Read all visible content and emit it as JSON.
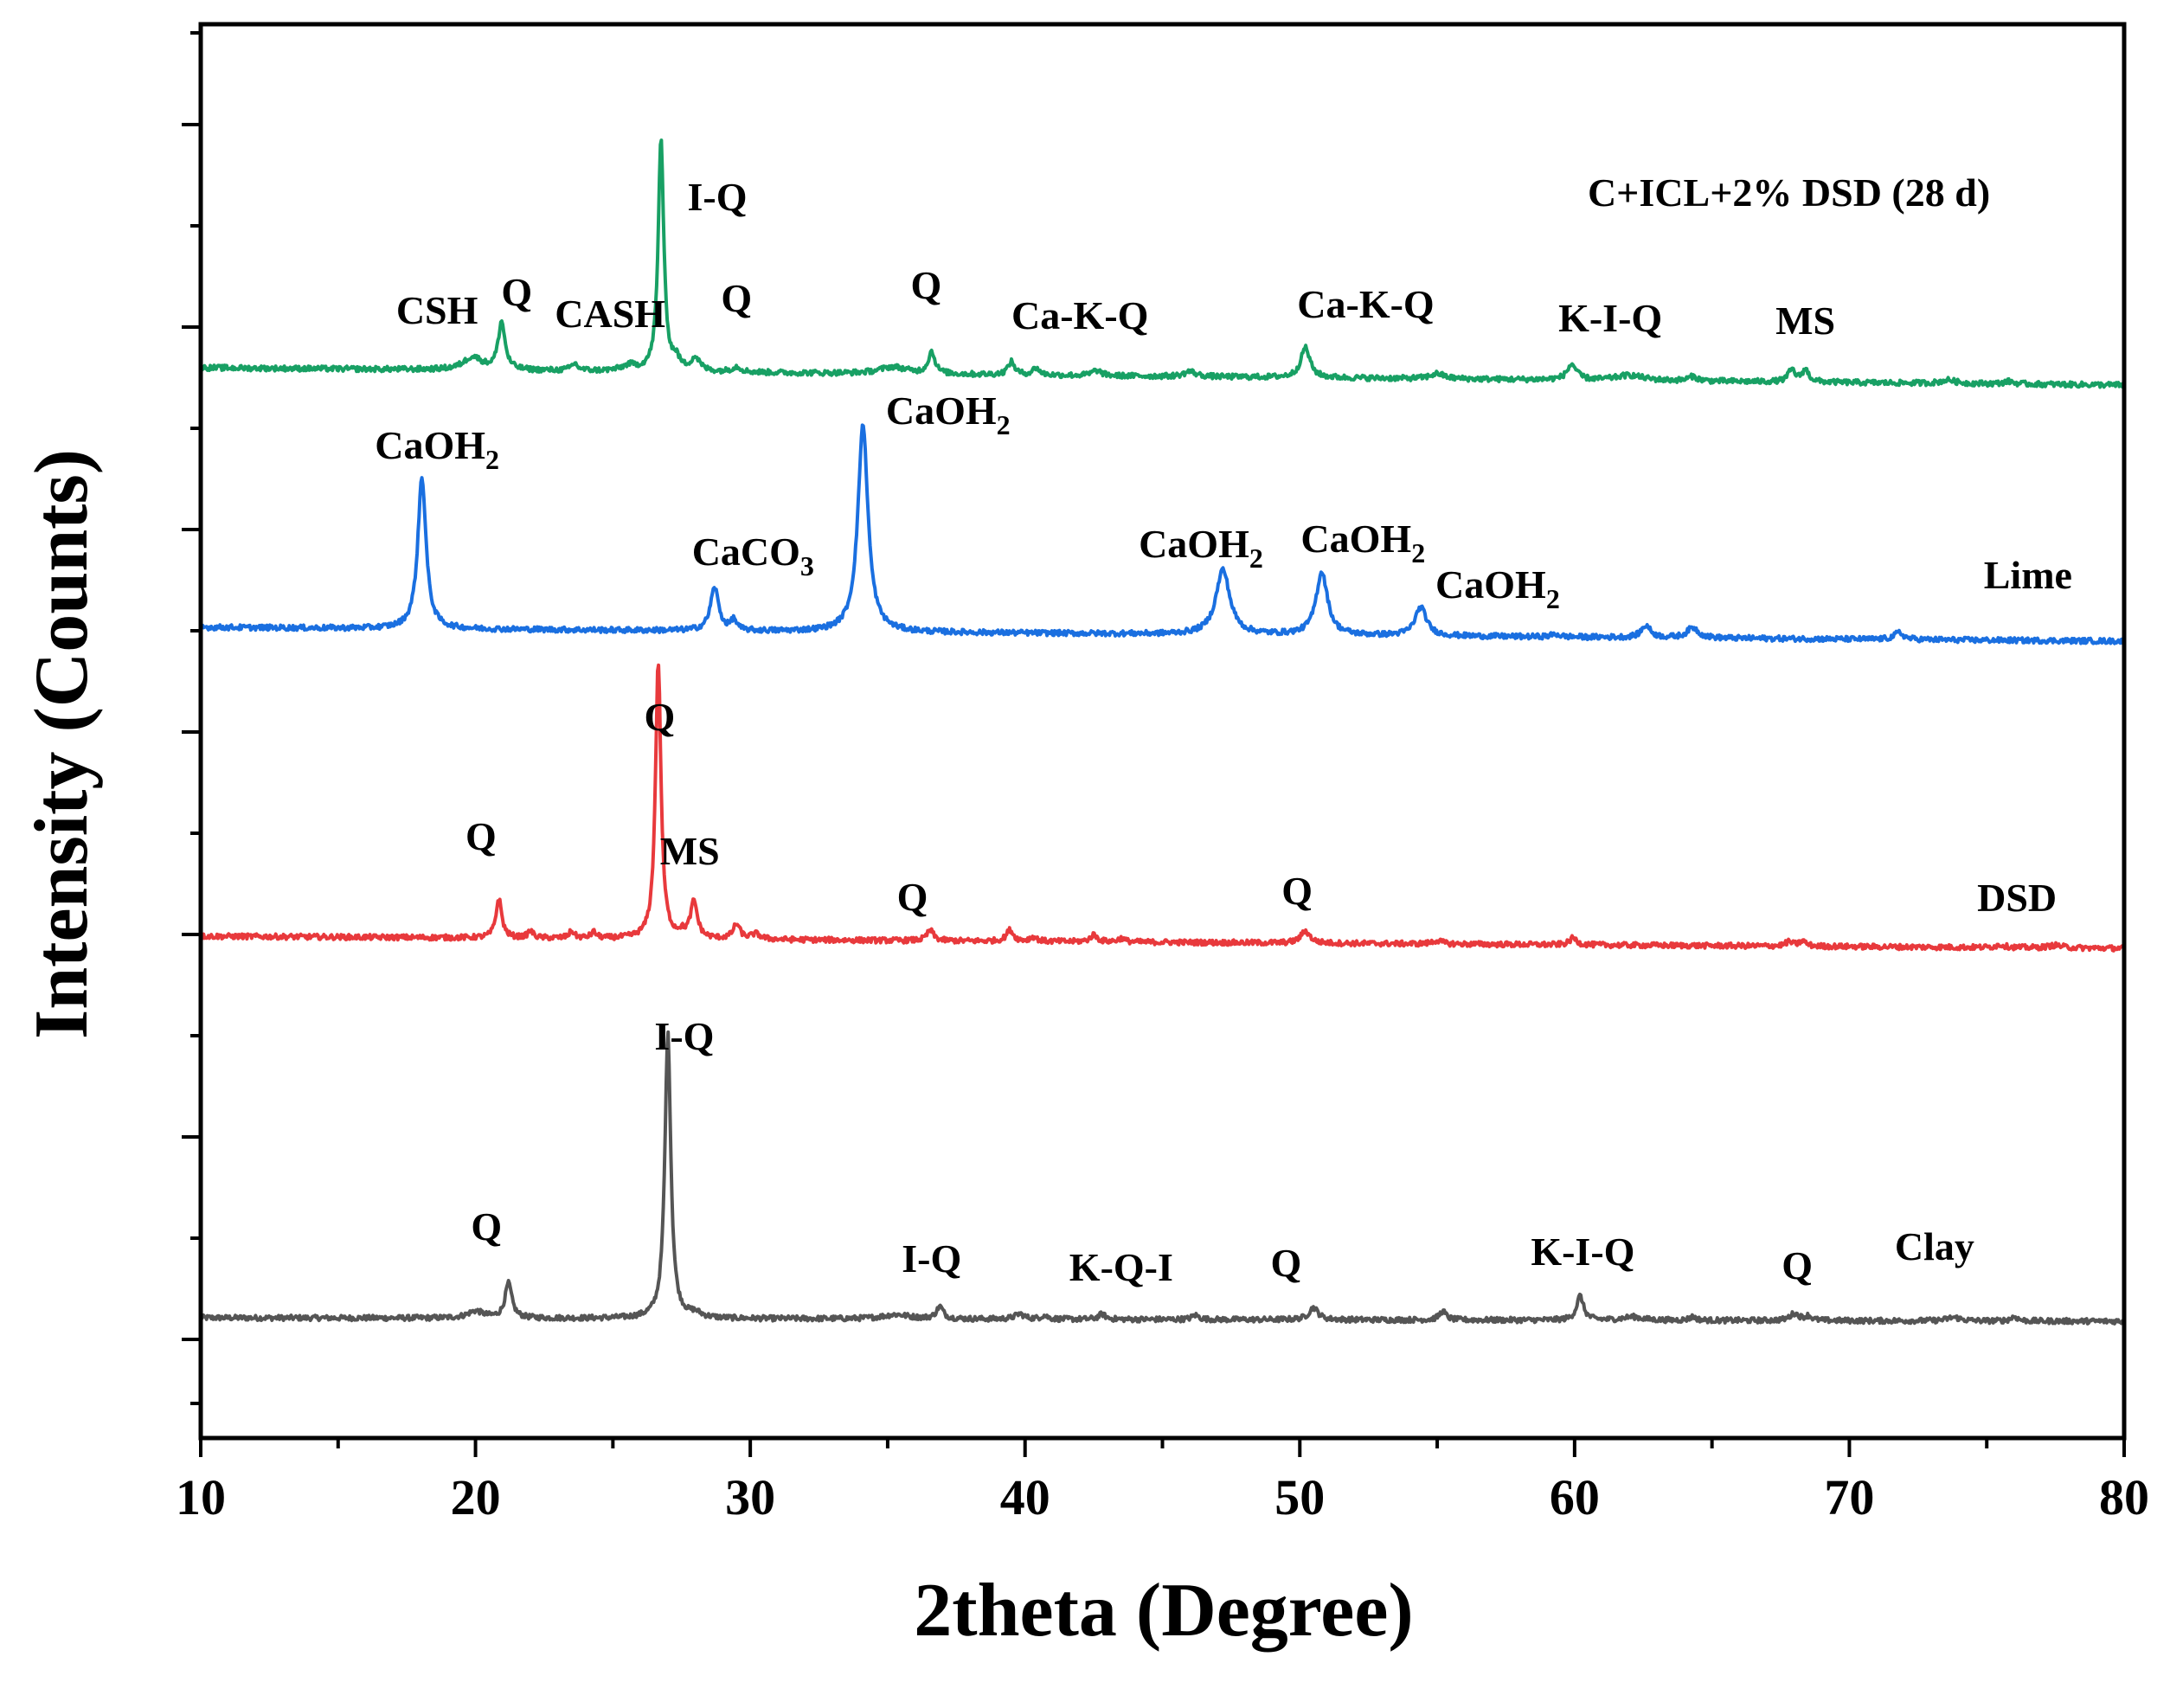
{
  "chart_data": {
    "type": "line",
    "title": "",
    "xlabel": "2theta (Degree)",
    "ylabel": "Intensity (Counts)",
    "xlim": [
      10,
      80
    ],
    "xticks": [
      10,
      20,
      30,
      40,
      50,
      60,
      70,
      80
    ],
    "yticks_labeled": false,
    "series": [
      {
        "name": "Clay",
        "color": "#555555",
        "baseline": 56,
        "slope": -2,
        "peaks": [
          [
            20.0,
            8,
            0.35
          ],
          [
            21.2,
            40,
            0.15
          ],
          [
            27.0,
            330,
            0.13
          ],
          [
            28.0,
            5,
            0.25
          ],
          [
            35.3,
            5,
            0.6
          ],
          [
            36.9,
            14,
            0.15
          ],
          [
            39.8,
            6,
            0.2
          ],
          [
            40.7,
            4,
            0.15
          ],
          [
            42.8,
            6,
            0.15
          ],
          [
            46.2,
            5,
            0.15
          ],
          [
            50.5,
            14,
            0.2
          ],
          [
            55.2,
            10,
            0.15
          ],
          [
            60.2,
            28,
            0.15
          ],
          [
            62.1,
            4,
            0.4
          ],
          [
            64.3,
            4,
            0.15
          ],
          [
            68.0,
            8,
            0.2
          ],
          [
            68.5,
            5,
            0.15
          ],
          [
            73.8,
            4,
            0.3
          ],
          [
            76.0,
            5,
            0.15
          ]
        ],
        "peak_labels": [
          {
            "text": "Q",
            "x": 20.4
          },
          {
            "text": "I-Q",
            "x": 27.6
          },
          {
            "text": "I-Q",
            "x": 36.6
          },
          {
            "text": "K-Q-I",
            "x": 43.5
          },
          {
            "text": "Q",
            "x": 49.5
          },
          {
            "text": "K-I-Q",
            "x": 60.3
          },
          {
            "text": "Q",
            "x": 68.1
          },
          {
            "text": "Clay",
            "x": 73.1
          }
        ]
      },
      {
        "name": "DSD",
        "color": "#e8393c",
        "baseline": 61,
        "slope": -7,
        "peaks": [
          [
            20.85,
            45,
            0.13
          ],
          [
            22.0,
            8,
            0.12
          ],
          [
            23.5,
            8,
            0.12
          ],
          [
            24.3,
            7,
            0.12
          ],
          [
            26.65,
            320,
            0.12
          ],
          [
            27.5,
            5,
            0.15
          ],
          [
            27.95,
            42,
            0.15
          ],
          [
            29.5,
            17,
            0.15
          ],
          [
            30.2,
            6,
            0.2
          ],
          [
            36.55,
            12,
            0.15
          ],
          [
            39.45,
            13,
            0.15
          ],
          [
            40.3,
            5,
            0.15
          ],
          [
            42.5,
            8,
            0.15
          ],
          [
            43.5,
            4,
            0.15
          ],
          [
            50.2,
            14,
            0.2
          ],
          [
            55.0,
            4,
            0.2
          ],
          [
            59.95,
            8,
            0.15
          ],
          [
            67.8,
            5,
            0.15
          ],
          [
            68.3,
            6,
            0.15
          ],
          [
            75.5,
            3,
            0.2
          ],
          [
            77.5,
            3,
            0.3
          ]
        ],
        "peak_labels": [
          {
            "text": "Q",
            "x": 20.2
          },
          {
            "text": "Q",
            "x": 26.7
          },
          {
            "text": "MS",
            "x": 27.8
          },
          {
            "text": "Q",
            "x": 35.9
          },
          {
            "text": "Q",
            "x": 49.9
          },
          {
            "text": "DSD",
            "x": 76.1
          }
        ]
      },
      {
        "name": "Lime",
        "color": "#1a6fe0",
        "baseline": 65,
        "slope": -8,
        "peaks": [
          [
            18.05,
            175,
            0.18
          ],
          [
            28.7,
            50,
            0.18
          ],
          [
            29.4,
            12,
            0.12
          ],
          [
            34.1,
            240,
            0.22
          ],
          [
            47.2,
            75,
            0.3
          ],
          [
            50.8,
            73,
            0.25
          ],
          [
            54.4,
            33,
            0.25
          ],
          [
            59.3,
            3,
            0.2
          ],
          [
            62.6,
            14,
            0.2
          ],
          [
            64.3,
            12,
            0.25
          ],
          [
            71.8,
            8,
            0.2
          ]
        ],
        "peak_labels": [
          {
            "text": "CaOH",
            "sub": "2",
            "x": 18.6
          },
          {
            "text": "CaCO",
            "sub": "3",
            "x": 30.1
          },
          {
            "text": "CaOH",
            "sub": "2",
            "x": 37.2
          },
          {
            "text": "CaOH",
            "sub": "2",
            "x": 46.4
          },
          {
            "text": "CaOH",
            "sub": "2",
            "x": 52.3
          },
          {
            "text": "CaOH",
            "sub": "2",
            "x": 57.2
          },
          {
            "text": "Lime",
            "x": 76.5
          }
        ]
      },
      {
        "name": "C+ICL+2% DSD (28 d)",
        "color": "#18a064",
        "baseline": 60,
        "slope": -10,
        "peaks": [
          [
            19.9,
            15,
            0.4
          ],
          [
            20.95,
            55,
            0.15
          ],
          [
            23.6,
            8,
            0.15
          ],
          [
            25.6,
            6,
            0.3
          ],
          [
            26.75,
            270,
            0.12
          ],
          [
            27.3,
            12,
            0.15
          ],
          [
            28.0,
            15,
            0.2
          ],
          [
            29.5,
            6,
            0.2
          ],
          [
            35.2,
            8,
            0.6
          ],
          [
            36.6,
            25,
            0.15
          ],
          [
            39.5,
            15,
            0.15
          ],
          [
            40.4,
            8,
            0.15
          ],
          [
            42.6,
            6,
            0.2
          ],
          [
            46.0,
            6,
            0.25
          ],
          [
            50.2,
            35,
            0.2
          ],
          [
            55.0,
            6,
            0.3
          ],
          [
            59.9,
            18,
            0.2
          ],
          [
            62.0,
            6,
            0.6
          ],
          [
            64.3,
            5,
            0.2
          ],
          [
            67.9,
            14,
            0.15
          ],
          [
            68.4,
            14,
            0.15
          ],
          [
            73.6,
            4,
            0.3
          ],
          [
            75.8,
            3,
            0.2
          ]
        ],
        "peak_labels": [
          {
            "text": "CSH",
            "x": 18.6
          },
          {
            "text": "Q",
            "x": 21.5
          },
          {
            "text": "CASH",
            "x": 24.9
          },
          {
            "text": "Q",
            "x": 29.5
          },
          {
            "text": "Q",
            "x": 36.4
          },
          {
            "text": "Ca-K-Q",
            "x": 42.0
          },
          {
            "text": "Ca-K-Q",
            "x": 52.4
          },
          {
            "text": "K-I-Q",
            "x": 61.3
          },
          {
            "text": "MS",
            "x": 68.4
          },
          {
            "text": "I-Q",
            "x": 28.8
          },
          {
            "text": "C+ICL+2% DSD (28 d)",
            "x": 67.8
          }
        ]
      }
    ],
    "legend": "none",
    "grid": false
  }
}
